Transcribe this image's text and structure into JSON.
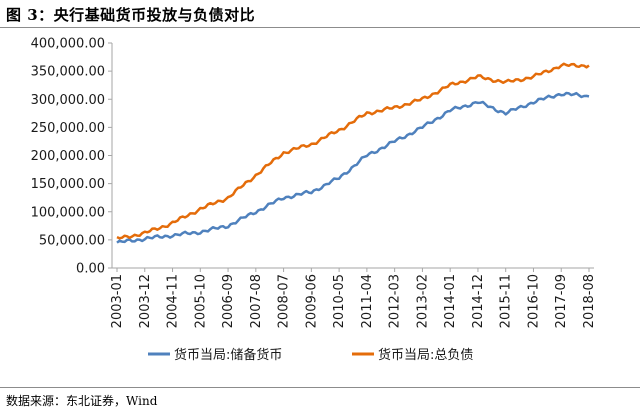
{
  "figure": {
    "title": "图 3：央行基础货币投放与负债对比",
    "source": "数据来源：东北证券，Wind"
  },
  "chart_data": {
    "type": "line",
    "y_tick_labels": [
      "0.00",
      "50,000.00",
      "100,000.00",
      "150,000.00",
      "200,000.00",
      "250,000.00",
      "300,000.00",
      "350,000.00",
      "400,000.00"
    ],
    "x_tick_labels": [
      "2003-01",
      "2003-12",
      "2004-11",
      "2005-10",
      "2006-09",
      "2007-08",
      "2008-07",
      "2009-06",
      "2010-05",
      "2011-04",
      "2012-03",
      "2013-02",
      "2014-01",
      "2014-12",
      "2015-11",
      "2016-10",
      "2017-09",
      "2018-08"
    ],
    "ylim": [
      0,
      400000
    ],
    "grid": false,
    "legend": "bottom",
    "series": [
      {
        "name": "货币当局:储备货币",
        "color": "#4f81bd",
        "x": [
          "2003-01",
          "2003-12",
          "2004-11",
          "2005-10",
          "2006-09",
          "2007-08",
          "2008-07",
          "2009-06",
          "2010-05",
          "2011-04",
          "2012-03",
          "2013-02",
          "2014-01",
          "2014-12",
          "2015-11",
          "2016-10",
          "2017-09",
          "2018-08"
        ],
        "values": [
          45000,
          52000,
          58000,
          64000,
          75000,
          100000,
          125000,
          135000,
          160000,
          200000,
          225000,
          250000,
          280000,
          295000,
          275000,
          295000,
          310000,
          305000
        ]
      },
      {
        "name": "货币当局:总负债",
        "color": "#e46c0a",
        "x": [
          "2003-01",
          "2003-12",
          "2004-11",
          "2005-10",
          "2006-09",
          "2007-08",
          "2008-07",
          "2009-06",
          "2010-05",
          "2011-04",
          "2012-03",
          "2013-02",
          "2014-01",
          "2014-12",
          "2015-11",
          "2016-10",
          "2017-09",
          "2018-08"
        ],
        "values": [
          52000,
          62000,
          80000,
          105000,
          125000,
          165000,
          205000,
          220000,
          245000,
          275000,
          285000,
          300000,
          325000,
          340000,
          330000,
          340000,
          360000,
          360000
        ]
      }
    ]
  }
}
